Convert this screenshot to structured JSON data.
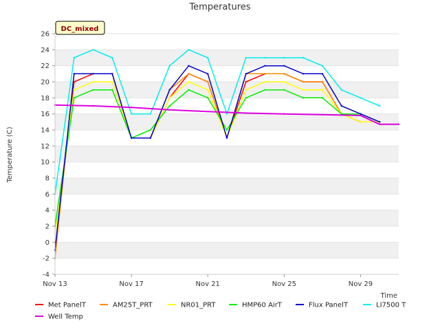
{
  "chart_data": {
    "type": "line",
    "title": "Temperatures",
    "xlabel": "Time",
    "ylabel": "Temperature (C)",
    "badge": "DC_mixed",
    "x_range_days": [
      "Nov 13",
      "Dec 1"
    ],
    "x_ticks": [
      "Nov 13",
      "Nov 17",
      "Nov 21",
      "Nov 25",
      "Nov 29"
    ],
    "ylim": [
      -4,
      26
    ],
    "y_ticks": [
      -4,
      -2,
      0,
      2,
      4,
      6,
      8,
      10,
      12,
      14,
      16,
      18,
      20,
      22,
      24,
      26
    ],
    "grid": "horizontal alternating bands",
    "legend_position": "bottom",
    "colors": {
      "Met PanelT": "#ff0000",
      "AM25T_PRT": "#ff8c00",
      "NR01_PRT": "#ffff00",
      "HMP60 AirT": "#00ee00",
      "Flux PanelT": "#0000cc",
      "LI7500 T": "#00eeee",
      "Well Temp": "#dd00dd"
    },
    "series": [
      {
        "name": "Met PanelT",
        "x": [
          "Nov 13",
          "Nov 14",
          "Nov 15",
          "Nov 16",
          "Nov 17",
          "Nov 18",
          "Nov 19",
          "Nov 20",
          "Nov 21",
          "Nov 22",
          "Nov 23",
          "Nov 24",
          "Nov 25",
          "Nov 26",
          "Nov 27",
          "Nov 28",
          "Nov 29",
          "Nov 30"
        ],
        "values": [
          -1,
          20,
          21,
          21,
          13,
          13,
          18,
          21,
          20,
          13,
          20,
          21,
          21,
          20,
          20,
          16,
          15,
          15
        ]
      },
      {
        "name": "AM25T_PRT",
        "x": [
          "Nov 13",
          "Nov 14",
          "Nov 15",
          "Nov 16",
          "Nov 17",
          "Nov 18",
          "Nov 19",
          "Nov 20",
          "Nov 21",
          "Nov 22",
          "Nov 23",
          "Nov 24",
          "Nov 25",
          "Nov 26",
          "Nov 27",
          "Nov 28",
          "Nov 29",
          "Nov 30"
        ],
        "values": [
          -2,
          21,
          21,
          21,
          13,
          13,
          19,
          21,
          20,
          13,
          21,
          21,
          21,
          20,
          20,
          16,
          16,
          15
        ]
      },
      {
        "name": "NR01_PRT",
        "x": [
          "Nov 13",
          "Nov 14",
          "Nov 15",
          "Nov 16",
          "Nov 17",
          "Nov 18",
          "Nov 19",
          "Nov 20",
          "Nov 21",
          "Nov 22",
          "Nov 23",
          "Nov 24",
          "Nov 25",
          "Nov 26",
          "Nov 27",
          "Nov 28",
          "Nov 29",
          "Nov 30"
        ],
        "values": [
          1,
          19,
          20,
          20,
          13,
          13,
          18,
          20,
          19,
          13,
          19,
          20,
          20,
          19,
          19,
          16,
          15,
          15
        ]
      },
      {
        "name": "HMP60 AirT",
        "x": [
          "Nov 13",
          "Nov 14",
          "Nov 15",
          "Nov 16",
          "Nov 17",
          "Nov 18",
          "Nov 19",
          "Nov 20",
          "Nov 21",
          "Nov 22",
          "Nov 23",
          "Nov 24",
          "Nov 25",
          "Nov 26",
          "Nov 27",
          "Nov 28",
          "Nov 29",
          "Nov 30"
        ],
        "values": [
          2,
          18,
          19,
          19,
          13,
          14,
          17,
          19,
          18,
          14,
          18,
          19,
          19,
          18,
          18,
          16,
          16,
          15
        ]
      },
      {
        "name": "Flux PanelT",
        "x": [
          "Nov 13",
          "Nov 14",
          "Nov 15",
          "Nov 16",
          "Nov 17",
          "Nov 18",
          "Nov 19",
          "Nov 20",
          "Nov 21",
          "Nov 22",
          "Nov 23",
          "Nov 24",
          "Nov 25",
          "Nov 26",
          "Nov 27",
          "Nov 28",
          "Nov 29",
          "Nov 30"
        ],
        "values": [
          -1,
          21,
          21,
          21,
          13,
          13,
          19,
          22,
          21,
          13,
          21,
          22,
          22,
          21,
          21,
          17,
          16,
          15
        ]
      },
      {
        "name": "LI7500 T",
        "x": [
          "Nov 13",
          "Nov 14",
          "Nov 15",
          "Nov 16",
          "Nov 17",
          "Nov 18",
          "Nov 19",
          "Nov 20",
          "Nov 21",
          "Nov 22",
          "Nov 23",
          "Nov 24",
          "Nov 25",
          "Nov 26",
          "Nov 27",
          "Nov 28",
          "Nov 29",
          "Nov 30"
        ],
        "values": [
          6,
          23,
          24,
          23,
          16,
          16,
          22,
          24,
          23,
          16,
          23,
          23,
          23,
          23,
          22,
          19,
          18,
          17
        ]
      },
      {
        "name": "Well Temp",
        "x": [
          "Nov 13",
          "Nov 15",
          "Nov 17",
          "Nov 19",
          "Nov 21",
          "Nov 23",
          "Nov 25",
          "Nov 27",
          "Nov 29",
          "Nov 30",
          "Dec 1"
        ],
        "values": [
          17.1,
          17.0,
          16.8,
          16.5,
          16.3,
          16.1,
          16.0,
          15.9,
          15.8,
          14.7,
          14.7
        ]
      }
    ]
  }
}
